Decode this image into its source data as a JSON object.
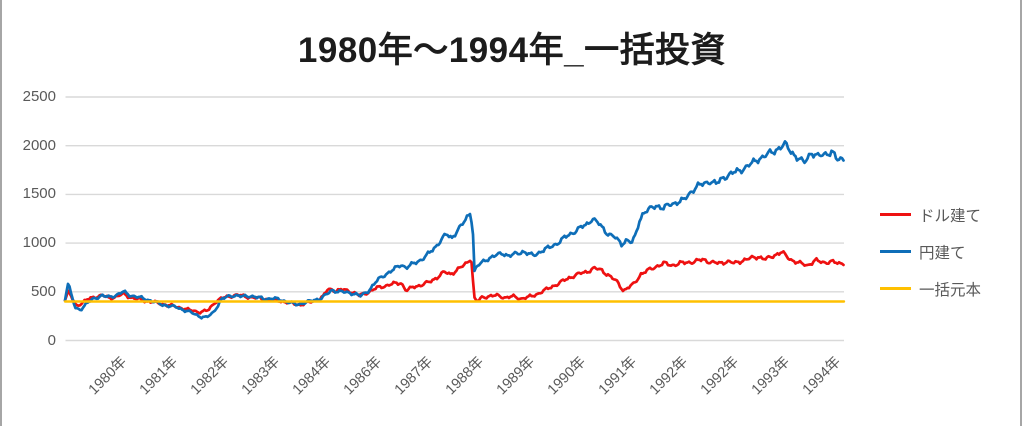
{
  "page": {
    "background": "#ffffff",
    "edge_border_color": "#a6a6a6"
  },
  "chart_data": {
    "type": "line",
    "title": "1980年〜1994年_一括投資",
    "xlabel": "",
    "ylabel": "",
    "x_range": [
      1980.0,
      1994.95
    ],
    "ylim": [
      0,
      2500
    ],
    "yticks": [
      "2500",
      "2000",
      "1500",
      "1000",
      "500",
      "0"
    ],
    "xticklabels": [
      "1980年",
      "1981年",
      "1982年",
      "1983年",
      "1984年",
      "1986年",
      "1987年",
      "1988年",
      "1989年",
      "1990年",
      "1991年",
      "1992年",
      "1992年",
      "1993年",
      "1994年"
    ],
    "grid": true,
    "gridline_color": "#d9d9d9",
    "tick_label_color": "#595959",
    "title_color": "#1c1c1c",
    "legend_position": "right",
    "series": [
      {
        "name": "ドル建て",
        "key": "dollar",
        "color": "#ee1111",
        "noise": true,
        "points": [
          [
            1980.0,
            420
          ],
          [
            1980.06,
            500
          ],
          [
            1980.14,
            430
          ],
          [
            1980.22,
            355
          ],
          [
            1980.32,
            385
          ],
          [
            1980.45,
            425
          ],
          [
            1980.58,
            450
          ],
          [
            1980.72,
            462
          ],
          [
            1980.85,
            435
          ],
          [
            1981.0,
            452
          ],
          [
            1981.12,
            478
          ],
          [
            1981.25,
            445
          ],
          [
            1981.4,
            425
          ],
          [
            1981.55,
            405
          ],
          [
            1981.7,
            395
          ],
          [
            1981.85,
            375
          ],
          [
            1982.0,
            362
          ],
          [
            1982.15,
            345
          ],
          [
            1982.3,
            325
          ],
          [
            1982.45,
            305
          ],
          [
            1982.6,
            292
          ],
          [
            1982.75,
            310
          ],
          [
            1982.88,
            395
          ],
          [
            1983.0,
            432
          ],
          [
            1983.15,
            452
          ],
          [
            1983.3,
            468
          ],
          [
            1983.45,
            452
          ],
          [
            1983.6,
            442
          ],
          [
            1983.75,
            432
          ],
          [
            1983.9,
            422
          ],
          [
            1984.05,
            412
          ],
          [
            1984.2,
            400
          ],
          [
            1984.35,
            382
          ],
          [
            1984.5,
            366
          ],
          [
            1984.65,
            386
          ],
          [
            1984.8,
            408
          ],
          [
            1984.95,
            448
          ],
          [
            1985.05,
            530
          ],
          [
            1985.2,
            512
          ],
          [
            1985.35,
            522
          ],
          [
            1985.5,
            500
          ],
          [
            1985.65,
            462
          ],
          [
            1985.8,
            492
          ],
          [
            1986.0,
            542
          ],
          [
            1986.15,
            562
          ],
          [
            1986.3,
            582
          ],
          [
            1986.45,
            592
          ],
          [
            1986.55,
            512
          ],
          [
            1986.7,
            552
          ],
          [
            1986.85,
            572
          ],
          [
            1987.0,
            602
          ],
          [
            1987.15,
            652
          ],
          [
            1987.28,
            702
          ],
          [
            1987.4,
            682
          ],
          [
            1987.52,
            722
          ],
          [
            1987.64,
            765
          ],
          [
            1987.74,
            812
          ],
          [
            1987.78,
            852
          ],
          [
            1987.81,
            792
          ],
          [
            1987.85,
            432
          ],
          [
            1987.92,
            402
          ],
          [
            1988.0,
            442
          ],
          [
            1988.15,
            456
          ],
          [
            1988.3,
            462
          ],
          [
            1988.45,
            440
          ],
          [
            1988.6,
            452
          ],
          [
            1988.75,
            430
          ],
          [
            1988.9,
            446
          ],
          [
            1989.0,
            462
          ],
          [
            1989.15,
            500
          ],
          [
            1989.3,
            540
          ],
          [
            1989.45,
            580
          ],
          [
            1989.6,
            622
          ],
          [
            1989.75,
            662
          ],
          [
            1989.9,
            690
          ],
          [
            1990.0,
            702
          ],
          [
            1990.15,
            742
          ],
          [
            1990.3,
            722
          ],
          [
            1990.45,
            662
          ],
          [
            1990.6,
            600
          ],
          [
            1990.72,
            512
          ],
          [
            1990.82,
            545
          ],
          [
            1990.92,
            582
          ],
          [
            1991.05,
            682
          ],
          [
            1991.2,
            722
          ],
          [
            1991.35,
            762
          ],
          [
            1991.5,
            792
          ],
          [
            1991.65,
            772
          ],
          [
            1991.8,
            792
          ],
          [
            1991.95,
            802
          ],
          [
            1992.1,
            812
          ],
          [
            1992.25,
            832
          ],
          [
            1992.4,
            802
          ],
          [
            1992.55,
            792
          ],
          [
            1992.7,
            812
          ],
          [
            1992.85,
            792
          ],
          [
            1993.0,
            822
          ],
          [
            1993.15,
            842
          ],
          [
            1993.3,
            862
          ],
          [
            1993.45,
            832
          ],
          [
            1993.6,
            872
          ],
          [
            1993.75,
            908
          ],
          [
            1993.85,
            862
          ],
          [
            1993.95,
            825
          ],
          [
            1994.1,
            792
          ],
          [
            1994.25,
            772
          ],
          [
            1994.4,
            822
          ],
          [
            1994.55,
            800
          ],
          [
            1994.7,
            812
          ],
          [
            1994.85,
            788
          ],
          [
            1994.95,
            800
          ]
        ]
      },
      {
        "name": "円建て",
        "key": "yen",
        "color": "#0e6eb8",
        "noise": true,
        "points": [
          [
            1980.0,
            430
          ],
          [
            1980.06,
            590
          ],
          [
            1980.12,
            470
          ],
          [
            1980.2,
            330
          ],
          [
            1980.3,
            320
          ],
          [
            1980.42,
            380
          ],
          [
            1980.55,
            430
          ],
          [
            1980.7,
            460
          ],
          [
            1980.85,
            445
          ],
          [
            1981.0,
            470
          ],
          [
            1981.12,
            500
          ],
          [
            1981.25,
            465
          ],
          [
            1981.4,
            445
          ],
          [
            1981.55,
            425
          ],
          [
            1981.7,
            400
          ],
          [
            1981.85,
            370
          ],
          [
            1982.0,
            355
          ],
          [
            1982.15,
            340
          ],
          [
            1982.3,
            310
          ],
          [
            1982.45,
            280
          ],
          [
            1982.6,
            245
          ],
          [
            1982.72,
            235
          ],
          [
            1982.85,
            290
          ],
          [
            1983.0,
            420
          ],
          [
            1983.12,
            450
          ],
          [
            1983.25,
            465
          ],
          [
            1983.4,
            450
          ],
          [
            1983.55,
            460
          ],
          [
            1983.7,
            440
          ],
          [
            1983.85,
            428
          ],
          [
            1984.0,
            432
          ],
          [
            1984.15,
            415
          ],
          [
            1984.3,
            392
          ],
          [
            1984.45,
            368
          ],
          [
            1984.6,
            390
          ],
          [
            1984.75,
            408
          ],
          [
            1984.9,
            432
          ],
          [
            1985.02,
            470
          ],
          [
            1985.12,
            515
          ],
          [
            1985.25,
            505
          ],
          [
            1985.4,
            492
          ],
          [
            1985.55,
            483
          ],
          [
            1985.68,
            455
          ],
          [
            1985.82,
            510
          ],
          [
            1986.0,
            620
          ],
          [
            1986.15,
            680
          ],
          [
            1986.3,
            725
          ],
          [
            1986.45,
            780
          ],
          [
            1986.55,
            748
          ],
          [
            1986.7,
            792
          ],
          [
            1986.85,
            835
          ],
          [
            1987.0,
            900
          ],
          [
            1987.1,
            955
          ],
          [
            1987.22,
            1035
          ],
          [
            1987.32,
            1090
          ],
          [
            1987.42,
            1050
          ],
          [
            1987.52,
            1125
          ],
          [
            1987.62,
            1185
          ],
          [
            1987.72,
            1265
          ],
          [
            1987.77,
            1315
          ],
          [
            1987.8,
            1245
          ],
          [
            1987.82,
            1295
          ],
          [
            1987.85,
            705
          ],
          [
            1987.92,
            765
          ],
          [
            1988.0,
            800
          ],
          [
            1988.12,
            842
          ],
          [
            1988.25,
            868
          ],
          [
            1988.4,
            898
          ],
          [
            1988.52,
            868
          ],
          [
            1988.65,
            888
          ],
          [
            1988.8,
            915
          ],
          [
            1988.92,
            880
          ],
          [
            1989.0,
            875
          ],
          [
            1989.15,
            920
          ],
          [
            1989.3,
            955
          ],
          [
            1989.45,
            1000
          ],
          [
            1989.6,
            1060
          ],
          [
            1989.75,
            1110
          ],
          [
            1989.9,
            1160
          ],
          [
            1990.0,
            1185
          ],
          [
            1990.12,
            1255
          ],
          [
            1990.25,
            1195
          ],
          [
            1990.4,
            1105
          ],
          [
            1990.55,
            1060
          ],
          [
            1990.68,
            990
          ],
          [
            1990.78,
            1035
          ],
          [
            1990.88,
            1000
          ],
          [
            1990.95,
            1080
          ],
          [
            1991.02,
            1230
          ],
          [
            1991.1,
            1310
          ],
          [
            1991.22,
            1345
          ],
          [
            1991.35,
            1390
          ],
          [
            1991.48,
            1355
          ],
          [
            1991.62,
            1400
          ],
          [
            1991.75,
            1420
          ],
          [
            1991.88,
            1440
          ],
          [
            1992.0,
            1520
          ],
          [
            1992.12,
            1580
          ],
          [
            1992.25,
            1605
          ],
          [
            1992.38,
            1640
          ],
          [
            1992.5,
            1605
          ],
          [
            1992.65,
            1680
          ],
          [
            1992.8,
            1715
          ],
          [
            1992.92,
            1740
          ],
          [
            1993.05,
            1775
          ],
          [
            1993.18,
            1815
          ],
          [
            1993.32,
            1870
          ],
          [
            1993.45,
            1900
          ],
          [
            1993.58,
            1935
          ],
          [
            1993.72,
            1985
          ],
          [
            1993.82,
            2010
          ],
          [
            1993.92,
            1950
          ],
          [
            1994.05,
            1880
          ],
          [
            1994.18,
            1820
          ],
          [
            1994.32,
            1935
          ],
          [
            1994.45,
            1885
          ],
          [
            1994.58,
            1915
          ],
          [
            1994.72,
            1940
          ],
          [
            1994.82,
            1850
          ],
          [
            1994.95,
            1870
          ]
        ]
      },
      {
        "name": "一括元本",
        "key": "principal",
        "color": "#ffc000",
        "noise": false,
        "points": [
          [
            1980.0,
            400
          ],
          [
            1994.95,
            400
          ]
        ]
      }
    ]
  }
}
